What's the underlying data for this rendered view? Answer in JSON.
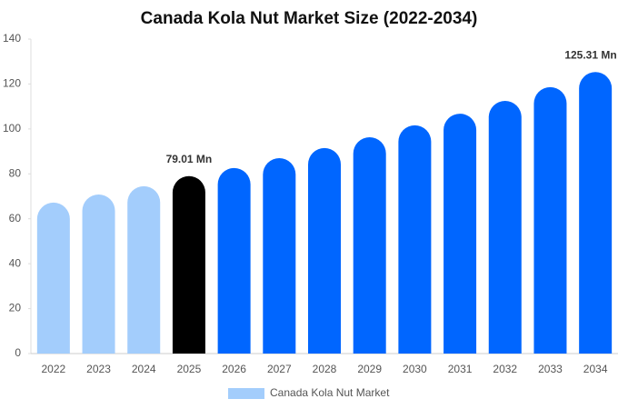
{
  "chart_data": {
    "type": "bar",
    "title": "Canada Kola Nut Market Size (2022-2034)",
    "categories": [
      "2022",
      "2023",
      "2024",
      "2025",
      "2026",
      "2027",
      "2028",
      "2029",
      "2030",
      "2031",
      "2032",
      "2033",
      "2034"
    ],
    "series": [
      {
        "name": "Canada Kola Nut Market",
        "color": "#a3cdfc",
        "values": [
          67.2,
          70.8,
          74.5,
          79.01,
          82.6,
          87.0,
          91.5,
          96.3,
          101.6,
          106.8,
          112.5,
          118.6,
          125.31
        ],
        "value_labels": [
          null,
          null,
          null,
          "79.01 Mn",
          null,
          null,
          null,
          null,
          null,
          null,
          null,
          null,
          "125.31 Mn"
        ],
        "colors": [
          "#a3cdfc",
          "#a3cdfc",
          "#a3cdfc",
          "#000000",
          "#0066ff",
          "#0066ff",
          "#0066ff",
          "#0066ff",
          "#0066ff",
          "#0066ff",
          "#0066ff",
          "#0066ff",
          "#0066ff"
        ]
      }
    ],
    "ylim": [
      0,
      140
    ],
    "yticks": [
      0,
      20,
      40,
      60,
      80,
      100,
      120,
      140
    ],
    "grid": false
  }
}
